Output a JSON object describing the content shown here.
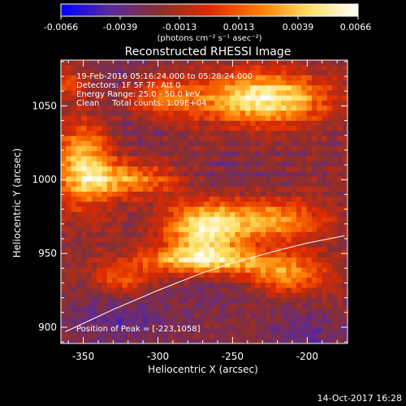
{
  "colorbar": {
    "tick_labels": [
      "-0.0066",
      "-0.0039",
      "-0.0013",
      "0.0013",
      "0.0039",
      "0.0066"
    ],
    "unit_label": "(photons cm⁻² s⁻¹ asec⁻²)",
    "range": [
      -0.0066,
      0.0066
    ]
  },
  "info_lines": [
    "19-Feb-2016 05:16:24.000 to 05:28:24.000",
    "Detectors: 1F 5F 7F, Att 0",
    "Energy Range: 25.0 - 50.0 keV",
    "Clean     Total counts: 1.09E+04"
  ],
  "peak_label": "Position of Peak = [-223,1058]",
  "timestamp": "14-Oct-2017 16:28",
  "colors": {
    "background": "#000000",
    "axes": "#ffffff",
    "colormap_stops": [
      "#0000ff",
      "#5a2a9a",
      "#8a2f2f",
      "#dd2a00",
      "#ff7a00",
      "#ffe060",
      "#ffffff"
    ]
  },
  "chart_data": {
    "type": "heatmap",
    "title": "Reconstructed RHESSI Image",
    "xlabel": "Heliocentric X (arcsec)",
    "ylabel": "Heliocentric Y (arcsec)",
    "xlim": [
      -365,
      -173
    ],
    "ylim": [
      889,
      1081
    ],
    "x_ticks": [
      -350,
      -300,
      -250,
      -200
    ],
    "y_ticks": [
      900,
      950,
      1000,
      1050
    ],
    "limb_curve": {
      "x": [
        -362,
        -330,
        -300,
        -270,
        -245,
        -220,
        -200,
        -175
      ],
      "y": [
        897,
        912,
        925,
        937,
        945,
        952,
        957,
        962
      ]
    },
    "peak": [
      -223,
      1058
    ],
    "bright_regions": [
      {
        "x": -230,
        "y": 1055,
        "sx": 30,
        "sy": 12,
        "amp": 1.0
      },
      {
        "x": -300,
        "y": 1055,
        "sx": 18,
        "sy": 10,
        "amp": 0.55
      },
      {
        "x": -350,
        "y": 1010,
        "sx": 14,
        "sy": 20,
        "amp": 0.8
      },
      {
        "x": -320,
        "y": 1000,
        "sx": 22,
        "sy": 8,
        "amp": 0.6
      },
      {
        "x": -270,
        "y": 965,
        "sx": 18,
        "sy": 14,
        "amp": 0.9
      },
      {
        "x": -225,
        "y": 972,
        "sx": 25,
        "sy": 10,
        "amp": 0.7
      },
      {
        "x": -270,
        "y": 945,
        "sx": 35,
        "sy": 6,
        "amp": 0.7
      },
      {
        "x": -215,
        "y": 935,
        "sx": 20,
        "sy": 9,
        "amp": 0.6
      },
      {
        "x": -325,
        "y": 932,
        "sx": 12,
        "sy": 6,
        "amp": 0.45
      },
      {
        "x": -360,
        "y": 1065,
        "sx": 10,
        "sy": 8,
        "amp": 0.35
      }
    ],
    "dim_regions": [
      {
        "x": -320,
        "y": 1055,
        "sx": 20,
        "sy": 20,
        "amp": 0.7
      },
      {
        "x": -325,
        "y": 905,
        "sx": 28,
        "sy": 12,
        "amp": 0.8
      },
      {
        "x": -250,
        "y": 925,
        "sx": 25,
        "sy": 10,
        "amp": 0.5
      },
      {
        "x": -200,
        "y": 895,
        "sx": 20,
        "sy": 12,
        "amp": 0.7
      },
      {
        "x": -255,
        "y": 1000,
        "sx": 18,
        "sy": 10,
        "amp": 0.4
      }
    ]
  }
}
